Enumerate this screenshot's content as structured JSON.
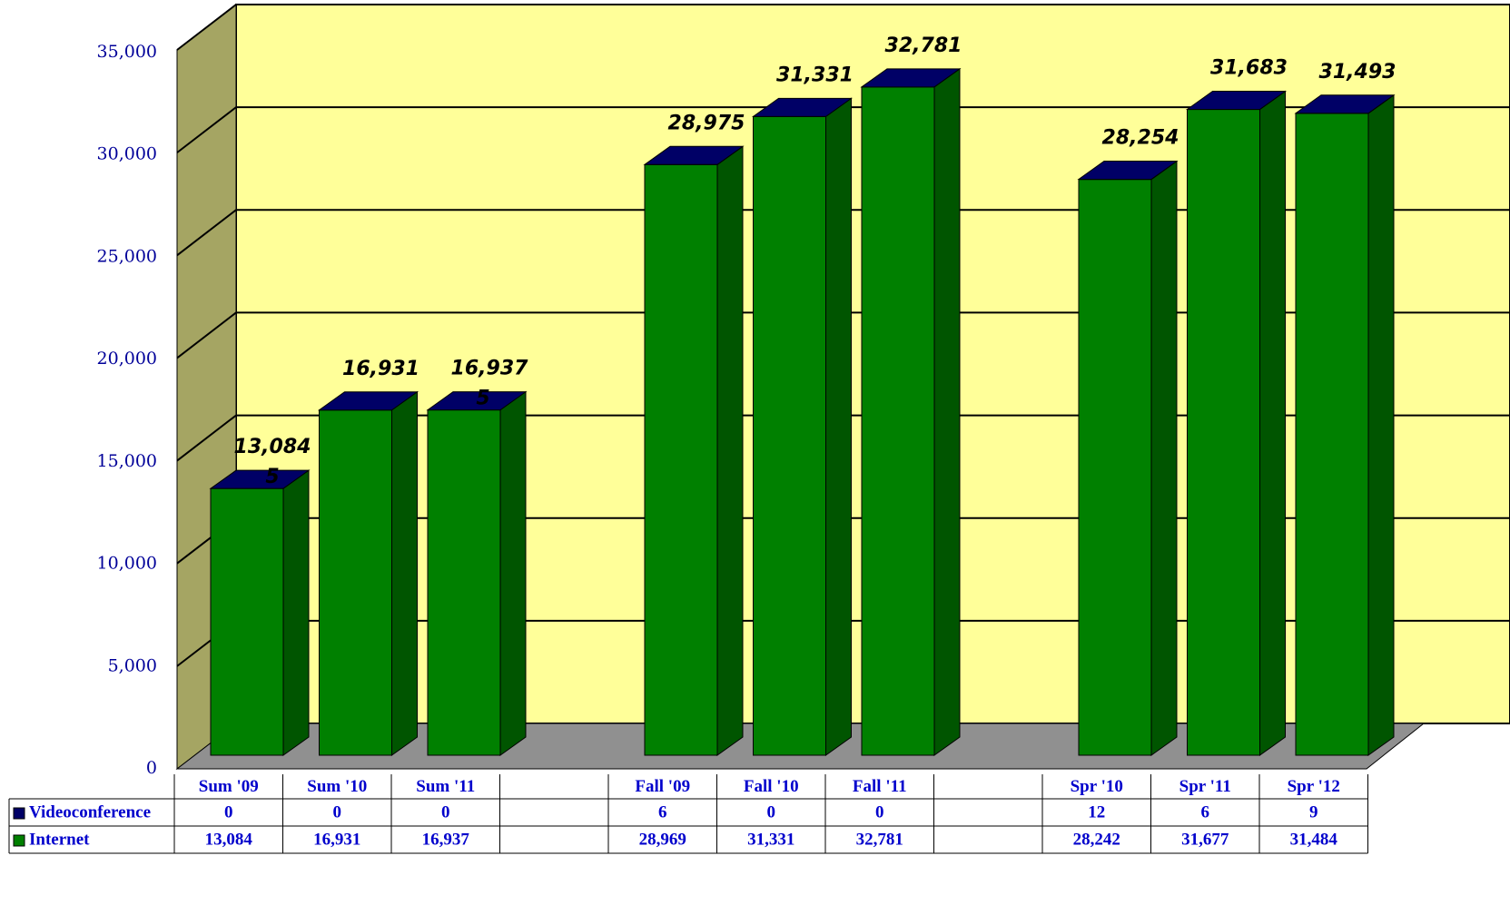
{
  "chart_data": {
    "type": "bar3d_stacked",
    "categories": [
      "Sum '09",
      "Sum '10",
      "Sum '11",
      null,
      "Fall '09",
      "Fall '10",
      "Fall '11",
      null,
      "Spr '10",
      "Spr '11",
      "Spr '12"
    ],
    "series": [
      {
        "name": "Videoconference",
        "color": "#000066",
        "values": [
          0,
          0,
          0,
          null,
          6,
          0,
          0,
          null,
          12,
          6,
          9
        ]
      },
      {
        "name": "Internet",
        "color": "#008000",
        "side_color": "#005500",
        "values": [
          13084,
          16931,
          16937,
          null,
          28969,
          31331,
          32781,
          null,
          28242,
          31677,
          31484
        ],
        "value_labels": [
          "13,084",
          "16,931",
          "16,937",
          null,
          "28,969",
          "31,331",
          "32,781",
          null,
          "28,242",
          "31,677",
          "31,484"
        ]
      }
    ],
    "totals": [
      13084,
      16931,
      16937,
      null,
      28975,
      31331,
      32781,
      null,
      28254,
      31683,
      31493
    ],
    "total_labels": [
      "13,084",
      "16,931",
      "16,937",
      null,
      "28,975",
      "31,331",
      "32,781",
      null,
      "28,254",
      "31,683",
      "31,493"
    ],
    "annotations": [
      "5",
      "5"
    ],
    "ylim": [
      0,
      35000
    ],
    "yticks": [
      0,
      {
        "value": 5000,
        "label": "5,000"
      },
      {
        "value": 10000,
        "label": "10,000"
      },
      {
        "value": 15000,
        "label": "15,000"
      },
      {
        "value": 20000,
        "label": "20,000"
      },
      {
        "value": 25000,
        "label": "25,000"
      },
      {
        "value": 30000,
        "label": "30,000"
      },
      {
        "value": 35000,
        "label": "35,000"
      }
    ],
    "grid": true
  }
}
